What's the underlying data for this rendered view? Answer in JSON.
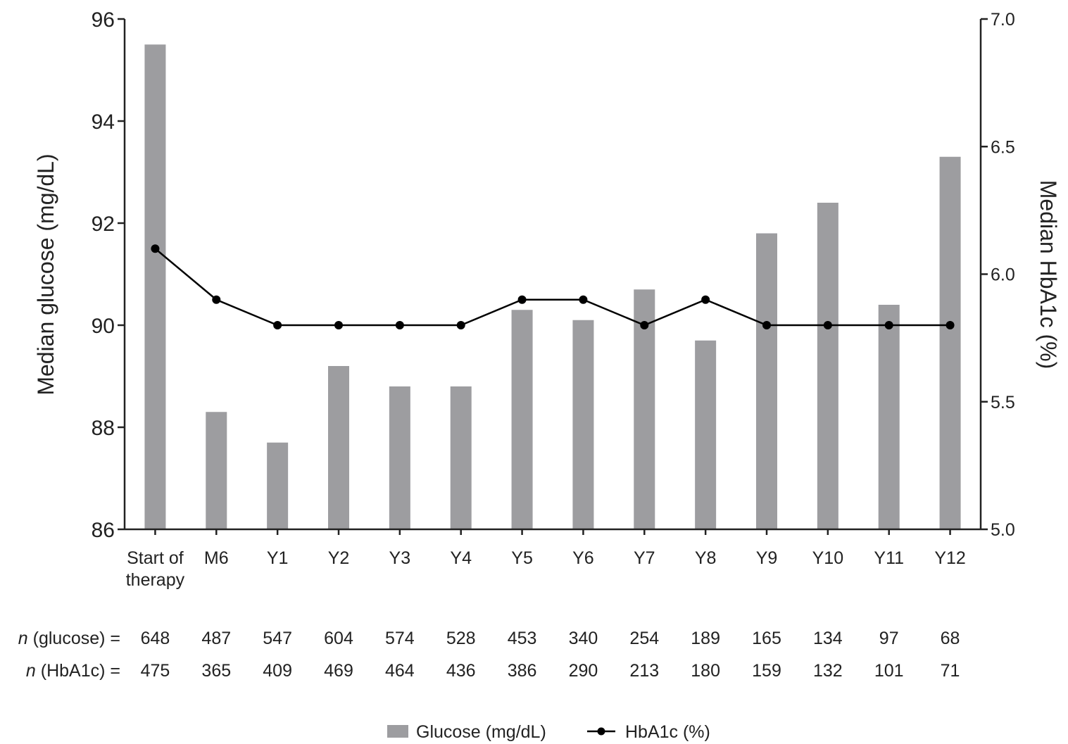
{
  "chart_data": {
    "type": "bar",
    "categories": [
      [
        "Start of",
        "therapy"
      ],
      [
        "M6"
      ],
      [
        "Y1"
      ],
      [
        "Y2"
      ],
      [
        "Y3"
      ],
      [
        "Y4"
      ],
      [
        "Y5"
      ],
      [
        "Y6"
      ],
      [
        "Y7"
      ],
      [
        "Y8"
      ],
      [
        "Y9"
      ],
      [
        "Y10"
      ],
      [
        "Y11"
      ],
      [
        "Y12"
      ]
    ],
    "series": [
      {
        "name": "Glucose (mg/dL)",
        "type": "bar",
        "axis": "left",
        "color": "#9d9da0",
        "values": [
          95.5,
          88.3,
          87.7,
          89.2,
          88.8,
          88.8,
          90.3,
          90.1,
          90.7,
          89.7,
          91.8,
          92.4,
          90.4,
          93.3
        ]
      },
      {
        "name": "HbA1c (%)",
        "type": "line",
        "axis": "right",
        "color": "#000000",
        "values": [
          6.1,
          5.9,
          5.8,
          5.8,
          5.8,
          5.8,
          5.9,
          5.9,
          5.8,
          5.9,
          5.8,
          5.8,
          5.8,
          5.8
        ]
      }
    ],
    "ylabel": "Median glucose (mg/dL)",
    "ylabel_right": "Median HbA1c (%)",
    "ylim": [
      86,
      96
    ],
    "ylim_right": [
      5.0,
      7.0
    ],
    "yticks": [
      "86",
      "88",
      "90",
      "92",
      "94",
      "96"
    ],
    "yticks_right": [
      "5.0",
      "5.5",
      "6.0",
      "6.5",
      "7.0"
    ],
    "grid": false,
    "legend_position": "bottom-center",
    "sample_sizes": [
      {
        "label_italic": "n",
        "label_rest": " (glucose) =",
        "values": [
          "648",
          "487",
          "547",
          "604",
          "574",
          "528",
          "453",
          "340",
          "254",
          "189",
          "165",
          "134",
          "97",
          "68"
        ]
      },
      {
        "label_italic": "n",
        "label_rest": " (HbA1c) =",
        "values": [
          "475",
          "365",
          "409",
          "469",
          "464",
          "436",
          "386",
          "290",
          "213",
          "180",
          "159",
          "132",
          "101",
          "71"
        ]
      }
    ]
  }
}
